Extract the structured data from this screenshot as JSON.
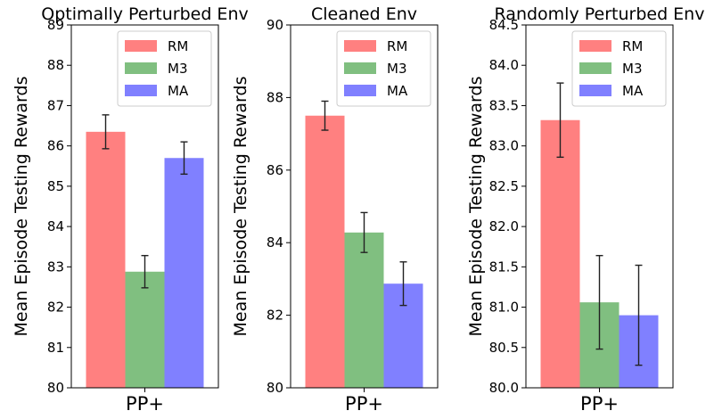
{
  "chart_data": [
    {
      "type": "bar",
      "title": "Optimally Perturbed Env",
      "ylabel": "Mean Episode Testing Rewards",
      "categories": [
        "PP+"
      ],
      "ylim": [
        80,
        89
      ],
      "yticks": [
        "80",
        "81",
        "82",
        "83",
        "84",
        "85",
        "86",
        "87",
        "88",
        "89"
      ],
      "series": [
        {
          "name": "RM",
          "value": 86.35,
          "err": 0.42,
          "color": "#ff8080"
        },
        {
          "name": "M3",
          "value": 82.88,
          "err": 0.4,
          "color": "#80bf80"
        },
        {
          "name": "MA",
          "value": 85.7,
          "err": 0.4,
          "color": "#8080ff"
        }
      ]
    },
    {
      "type": "bar",
      "title": "Cleaned Env",
      "ylabel": "Mean Episode Testing Rewards",
      "categories": [
        "PP+"
      ],
      "ylim": [
        80,
        90
      ],
      "yticks": [
        "80",
        "82",
        "84",
        "86",
        "88",
        "90"
      ],
      "series": [
        {
          "name": "RM",
          "value": 87.5,
          "err": 0.4,
          "color": "#ff8080"
        },
        {
          "name": "M3",
          "value": 84.28,
          "err": 0.55,
          "color": "#80bf80"
        },
        {
          "name": "MA",
          "value": 82.87,
          "err": 0.6,
          "color": "#8080ff"
        }
      ]
    },
    {
      "type": "bar",
      "title": "Randomly Perturbed Env",
      "ylabel": "Mean Episode Testing Rewards",
      "categories": [
        "PP+"
      ],
      "ylim": [
        80.0,
        84.5
      ],
      "yticks": [
        "80.0",
        "80.5",
        "81.0",
        "81.5",
        "82.0",
        "82.5",
        "83.0",
        "83.5",
        "84.0",
        "84.5"
      ],
      "series": [
        {
          "name": "RM",
          "value": 83.32,
          "err": 0.46,
          "color": "#ff8080"
        },
        {
          "name": "M3",
          "value": 81.06,
          "err": 0.58,
          "color": "#80bf80"
        },
        {
          "name": "MA",
          "value": 80.9,
          "err": 0.62,
          "color": "#8080ff"
        }
      ]
    }
  ]
}
